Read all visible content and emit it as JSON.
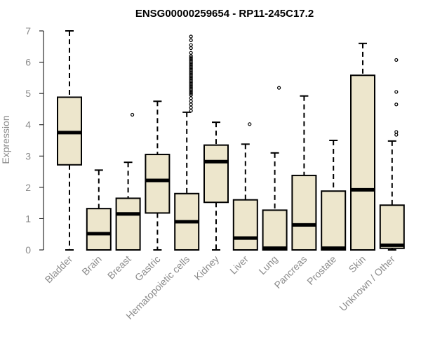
{
  "chart_data": {
    "type": "boxplot",
    "title": "ENSG00000259654 - RP11-245C17.2",
    "xlabel": "",
    "ylabel": "Expression",
    "ylim": [
      0,
      7
    ],
    "yticks": [
      0,
      1,
      2,
      3,
      4,
      5,
      6,
      7
    ],
    "colors": {
      "box_fill": "#ede6cc",
      "stroke": "#000000",
      "axis_text": "#8c8c8c"
    },
    "categories": [
      "Bladder",
      "Brain",
      "Breast",
      "Gastric",
      "Hematopoietic cells",
      "Kidney",
      "Liver",
      "Lung",
      "Pancreas",
      "Prostate",
      "Skin",
      "Unknown / Other"
    ],
    "boxes": [
      {
        "label": "Bladder",
        "min": 0,
        "q1": 2.72,
        "median": 3.75,
        "q3": 4.88,
        "max": 7.0,
        "outliers": []
      },
      {
        "label": "Brain",
        "min": 0,
        "q1": 0,
        "median": 0.52,
        "q3": 1.32,
        "max": 2.55,
        "outliers": []
      },
      {
        "label": "Breast",
        "min": 0,
        "q1": 0,
        "median": 1.15,
        "q3": 1.65,
        "max": 2.8,
        "outliers": [
          4.32
        ]
      },
      {
        "label": "Gastric",
        "min": 0,
        "q1": 1.18,
        "median": 2.22,
        "q3": 3.05,
        "max": 4.75,
        "outliers": []
      },
      {
        "label": "Hematopoietic cells",
        "min": 0,
        "q1": 0,
        "median": 0.9,
        "q3": 1.8,
        "max": 4.4,
        "outliers": [
          4.45,
          4.55,
          4.65,
          4.75,
          4.85,
          4.95,
          5.0,
          5.05,
          5.1,
          5.15,
          5.2,
          5.25,
          5.3,
          5.35,
          5.4,
          5.45,
          5.5,
          5.55,
          5.6,
          5.65,
          5.7,
          5.75,
          5.8,
          5.85,
          5.9,
          5.95,
          6.0,
          6.05,
          6.1,
          6.15,
          6.2,
          6.3,
          6.45,
          6.55,
          6.7,
          6.82
        ]
      },
      {
        "label": "Kidney",
        "min": 0,
        "q1": 1.52,
        "median": 2.82,
        "q3": 3.35,
        "max": 4.08,
        "outliers": []
      },
      {
        "label": "Liver",
        "min": 0,
        "q1": 0,
        "median": 0.38,
        "q3": 1.6,
        "max": 3.38,
        "outliers": [
          4.02
        ]
      },
      {
        "label": "Lung",
        "min": 0,
        "q1": 0,
        "median": 0.02,
        "q3": 1.27,
        "max": 3.1,
        "outliers": [
          5.18
        ]
      },
      {
        "label": "Pancreas",
        "min": 0,
        "q1": 0,
        "median": 0.8,
        "q3": 2.38,
        "max": 4.92,
        "outliers": []
      },
      {
        "label": "Prostate",
        "min": 0,
        "q1": 0,
        "median": 0.02,
        "q3": 1.88,
        "max": 3.5,
        "outliers": []
      },
      {
        "label": "Skin",
        "min": 0,
        "q1": 0,
        "median": 1.92,
        "q3": 5.58,
        "max": 6.6,
        "outliers": []
      },
      {
        "label": "Unknown / Other",
        "min": 0,
        "q1": 0.05,
        "median": 0.15,
        "q3": 1.43,
        "max": 3.48,
        "outliers": [
          3.68,
          3.77,
          4.65,
          5.05,
          6.07
        ]
      }
    ]
  }
}
